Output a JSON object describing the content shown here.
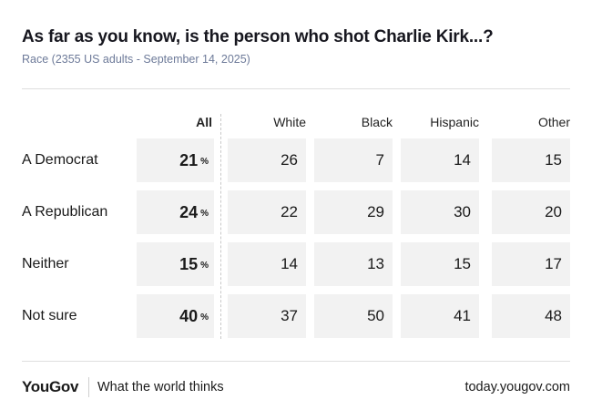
{
  "title": "As far as you know, is the person who shot Charlie Kirk...?",
  "subtitle": "Race (2355 US adults - September 14, 2025)",
  "chart_data": {
    "type": "table",
    "columns": [
      "All",
      "White",
      "Black",
      "Hispanic",
      "Other"
    ],
    "rows": [
      {
        "label": "A Democrat",
        "values": [
          21,
          26,
          7,
          14,
          15
        ]
      },
      {
        "label": "A Republican",
        "values": [
          24,
          22,
          29,
          30,
          20
        ]
      },
      {
        "label": "Neither",
        "values": [
          15,
          14,
          13,
          15,
          17
        ]
      },
      {
        "label": "Not sure",
        "values": [
          40,
          37,
          50,
          41,
          48
        ]
      }
    ],
    "unit": "%"
  },
  "footer": {
    "logo": "YouGov",
    "tagline": "What the world thinks",
    "url": "today.yougov.com"
  }
}
